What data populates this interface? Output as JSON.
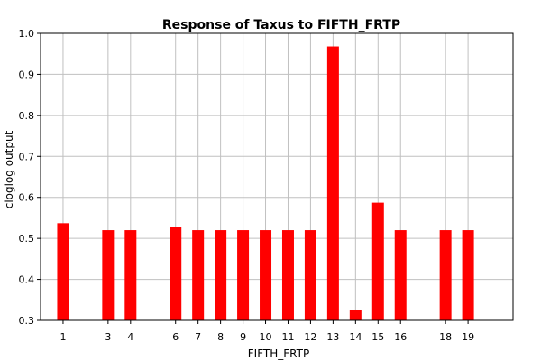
{
  "chart_data": {
    "type": "bar",
    "title": "Response of Taxus to FIFTH_FRTP",
    "xlabel": "FIFTH_FRTP",
    "ylabel": "cloglog output",
    "ylim": [
      0.3,
      1.0
    ],
    "xlim": [
      0,
      21
    ],
    "grid": true,
    "yticks": [
      0.3,
      0.4,
      0.5,
      0.6,
      0.7,
      0.8,
      0.9,
      1.0
    ],
    "ytick_labels": [
      "0.3",
      "0.4",
      "0.5",
      "0.6",
      "0.7",
      "0.8",
      "0.9",
      "1.0"
    ],
    "categories": [
      "1",
      "3",
      "4",
      "6",
      "7",
      "8",
      "9",
      "10",
      "11",
      "12",
      "13",
      "14",
      "15",
      "16",
      "18",
      "19"
    ],
    "x": [
      1,
      3,
      4,
      6,
      7,
      8,
      9,
      10,
      11,
      12,
      13,
      14,
      15,
      16,
      18,
      19
    ],
    "values": [
      0.537,
      0.52,
      0.52,
      0.528,
      0.52,
      0.52,
      0.52,
      0.52,
      0.52,
      0.52,
      0.968,
      0.326,
      0.587,
      0.52,
      0.52,
      0.52
    ],
    "bar_color": "#ff0000",
    "grid_color": "#c0c0c0"
  }
}
